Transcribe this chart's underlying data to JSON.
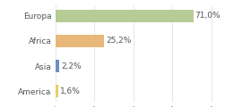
{
  "categories": [
    "Europa",
    "Africa",
    "Asia",
    "America"
  ],
  "values": [
    71.0,
    25.2,
    2.2,
    1.6
  ],
  "labels": [
    "71,0%",
    "25,2%",
    "2,2%",
    "1,6%"
  ],
  "bar_colors": [
    "#b5cc96",
    "#e8b87a",
    "#6b8fc4",
    "#e8d060"
  ],
  "background_color": "#ffffff",
  "xlim": [
    0,
    85
  ],
  "label_fontsize": 6.5,
  "category_fontsize": 6.5,
  "bar_height": 0.5
}
